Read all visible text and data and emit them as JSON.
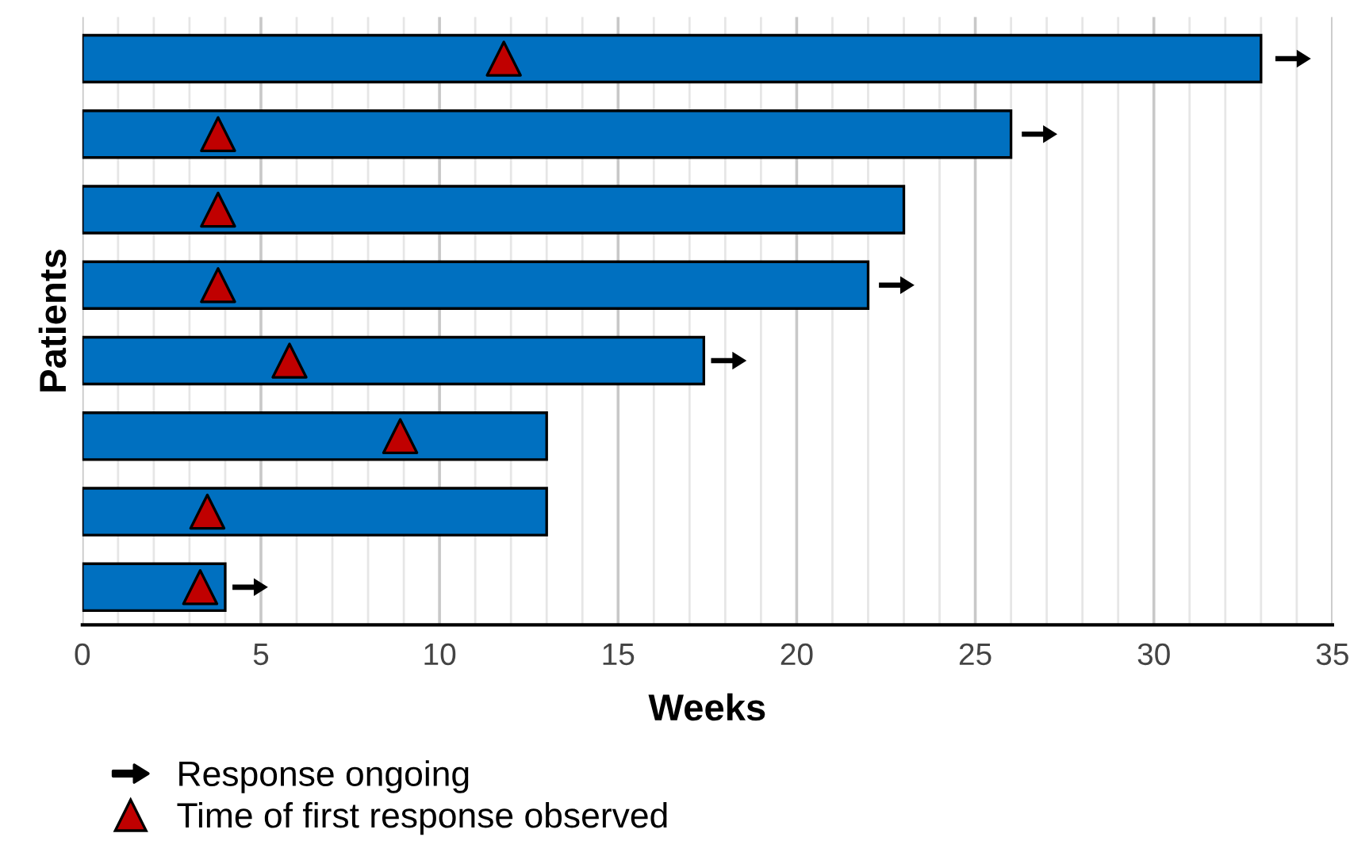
{
  "chart_data": {
    "type": "bar",
    "orientation": "horizontal",
    "xlabel": "Weeks",
    "ylabel": "Patients",
    "categories": [
      null,
      null,
      null,
      null,
      null,
      null,
      null,
      null
    ],
    "series": [
      {
        "color": "#0070c0",
        "values": [
          33,
          26,
          23,
          22,
          17.4,
          13,
          13,
          4
        ]
      },
      {
        "type": "scatter",
        "name": "Response ongoing",
        "color": "#000000",
        "values": [
          33.9,
          26.8,
          null,
          22.8,
          18.1,
          null,
          null,
          4.7
        ]
      },
      {
        "type": "scatter",
        "name": "Time of first response observed",
        "color": "#c00000",
        "marker": "triangle",
        "values": [
          11.8,
          3.8,
          3.8,
          3.8,
          5.8,
          8.9,
          3.5,
          3.3
        ]
      }
    ],
    "xlim": [
      0,
      35
    ],
    "xticks": [
      0,
      {
        "value": 1,
        "label": null
      },
      {
        "value": 2,
        "label": null
      },
      {
        "value": 3,
        "label": null
      },
      {
        "value": 4,
        "label": null
      },
      5,
      {
        "value": 6,
        "label": null
      },
      {
        "value": 7,
        "label": null
      },
      {
        "value": 8,
        "label": null
      },
      {
        "value": 9,
        "label": null
      },
      10,
      {
        "value": 11,
        "label": null
      },
      {
        "value": 12,
        "label": null
      },
      {
        "value": 13,
        "label": null
      },
      {
        "value": 14,
        "label": null
      },
      15,
      {
        "value": 16,
        "label": null
      },
      {
        "value": 17,
        "label": null
      },
      {
        "value": 18,
        "label": null
      },
      {
        "value": 19,
        "label": null
      },
      20,
      {
        "value": 21,
        "label": null
      },
      {
        "value": 22,
        "label": null
      },
      {
        "value": 23,
        "label": null
      },
      {
        "value": 24,
        "label": null
      },
      25,
      {
        "value": 26,
        "label": null
      },
      {
        "value": 27,
        "label": null
      },
      {
        "value": 28,
        "label": null
      },
      {
        "value": 29,
        "label": null
      },
      30,
      {
        "value": 31,
        "label": null
      },
      {
        "value": 32,
        "label": null
      },
      {
        "value": 33,
        "label": null
      },
      {
        "value": 34,
        "label": null
      },
      35
    ],
    "grid": "x",
    "legend": "bottom left"
  }
}
